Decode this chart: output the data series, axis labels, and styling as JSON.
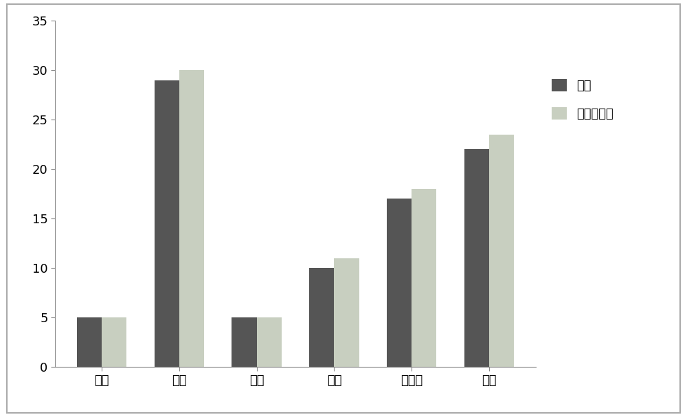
{
  "categories": [
    "光泽",
    "香气",
    "谐调",
    "杂气",
    "刺激性",
    "余味"
  ],
  "series1_name": "空白",
  "series1_values": [
    5,
    29,
    5,
    10,
    17,
    22
  ],
  "series2_name": "罗汉果浸膏",
  "series2_values": [
    5,
    30,
    5,
    11,
    18,
    23.5
  ],
  "series1_color": "#555555",
  "series2_color": "#c8cfc0",
  "ylim": [
    0,
    35
  ],
  "yticks": [
    0,
    5,
    10,
    15,
    20,
    25,
    30,
    35
  ],
  "bar_width": 0.32,
  "background_color": "#ffffff",
  "border_color": "#888888",
  "legend_fontsize": 13,
  "tick_fontsize": 13,
  "figsize": [
    10.0,
    6.07
  ]
}
